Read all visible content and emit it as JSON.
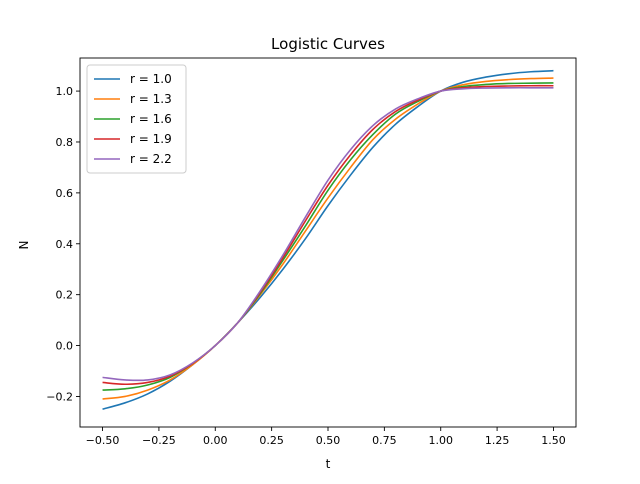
{
  "chart_data": {
    "type": "line",
    "title": "Logistic Curves",
    "xlabel": "t",
    "ylabel": "N",
    "xlim": [
      -0.6,
      1.6
    ],
    "ylim": [
      -0.32,
      1.13
    ],
    "xticks": [
      -0.5,
      -0.25,
      0.0,
      0.25,
      0.5,
      0.75,
      1.0,
      1.25,
      1.5
    ],
    "xtick_labels": [
      "−0.50",
      "−0.25",
      "0.00",
      "0.25",
      "0.50",
      "0.75",
      "1.00",
      "1.25",
      "1.50"
    ],
    "yticks": [
      -0.2,
      0.0,
      0.2,
      0.4,
      0.6,
      0.8,
      1.0
    ],
    "ytick_labels": [
      "−0.2",
      "0.0",
      "0.2",
      "0.4",
      "0.6",
      "0.8",
      "1.0"
    ],
    "grid": false,
    "legend_position": "top-left",
    "x": [
      -0.5,
      -0.4,
      -0.3,
      -0.2,
      -0.1,
      0.0,
      0.1,
      0.2,
      0.3,
      0.4,
      0.5,
      0.6,
      0.7,
      0.8,
      0.9,
      1.0,
      1.1,
      1.2,
      1.3,
      1.4,
      1.5
    ],
    "series": [
      {
        "name": "r = 1.0",
        "color": "#1f77b4",
        "values": [
          -0.25,
          -0.225,
          -0.19,
          -0.14,
          -0.075,
          0.0,
          0.09,
          0.19,
          0.3,
          0.42,
          0.55,
          0.67,
          0.78,
          0.87,
          0.94,
          1.0,
          1.035,
          1.055,
          1.068,
          1.076,
          1.08
        ]
      },
      {
        "name": "r = 1.3",
        "color": "#ff7f0e",
        "values": [
          -0.21,
          -0.2,
          -0.175,
          -0.135,
          -0.075,
          0.0,
          0.09,
          0.2,
          0.32,
          0.45,
          0.58,
          0.7,
          0.81,
          0.89,
          0.95,
          1.0,
          1.025,
          1.038,
          1.045,
          1.049,
          1.051
        ]
      },
      {
        "name": "r = 1.6",
        "color": "#2ca02c",
        "values": [
          -0.175,
          -0.17,
          -0.155,
          -0.125,
          -0.07,
          0.0,
          0.09,
          0.205,
          0.335,
          0.47,
          0.61,
          0.73,
          0.83,
          0.91,
          0.96,
          1.0,
          1.018,
          1.026,
          1.03,
          1.031,
          1.032
        ]
      },
      {
        "name": "r = 1.9",
        "color": "#d62728",
        "values": [
          -0.145,
          -0.152,
          -0.145,
          -0.12,
          -0.07,
          0.0,
          0.09,
          0.21,
          0.345,
          0.49,
          0.63,
          0.75,
          0.85,
          0.92,
          0.965,
          1.0,
          1.013,
          1.018,
          1.02,
          1.021,
          1.021
        ]
      },
      {
        "name": "r = 2.2",
        "color": "#9467bd",
        "values": [
          -0.125,
          -0.135,
          -0.135,
          -0.115,
          -0.068,
          0.0,
          0.09,
          0.215,
          0.355,
          0.505,
          0.65,
          0.77,
          0.865,
          0.93,
          0.97,
          1.0,
          1.009,
          1.012,
          1.013,
          1.013,
          1.013
        ]
      }
    ]
  }
}
